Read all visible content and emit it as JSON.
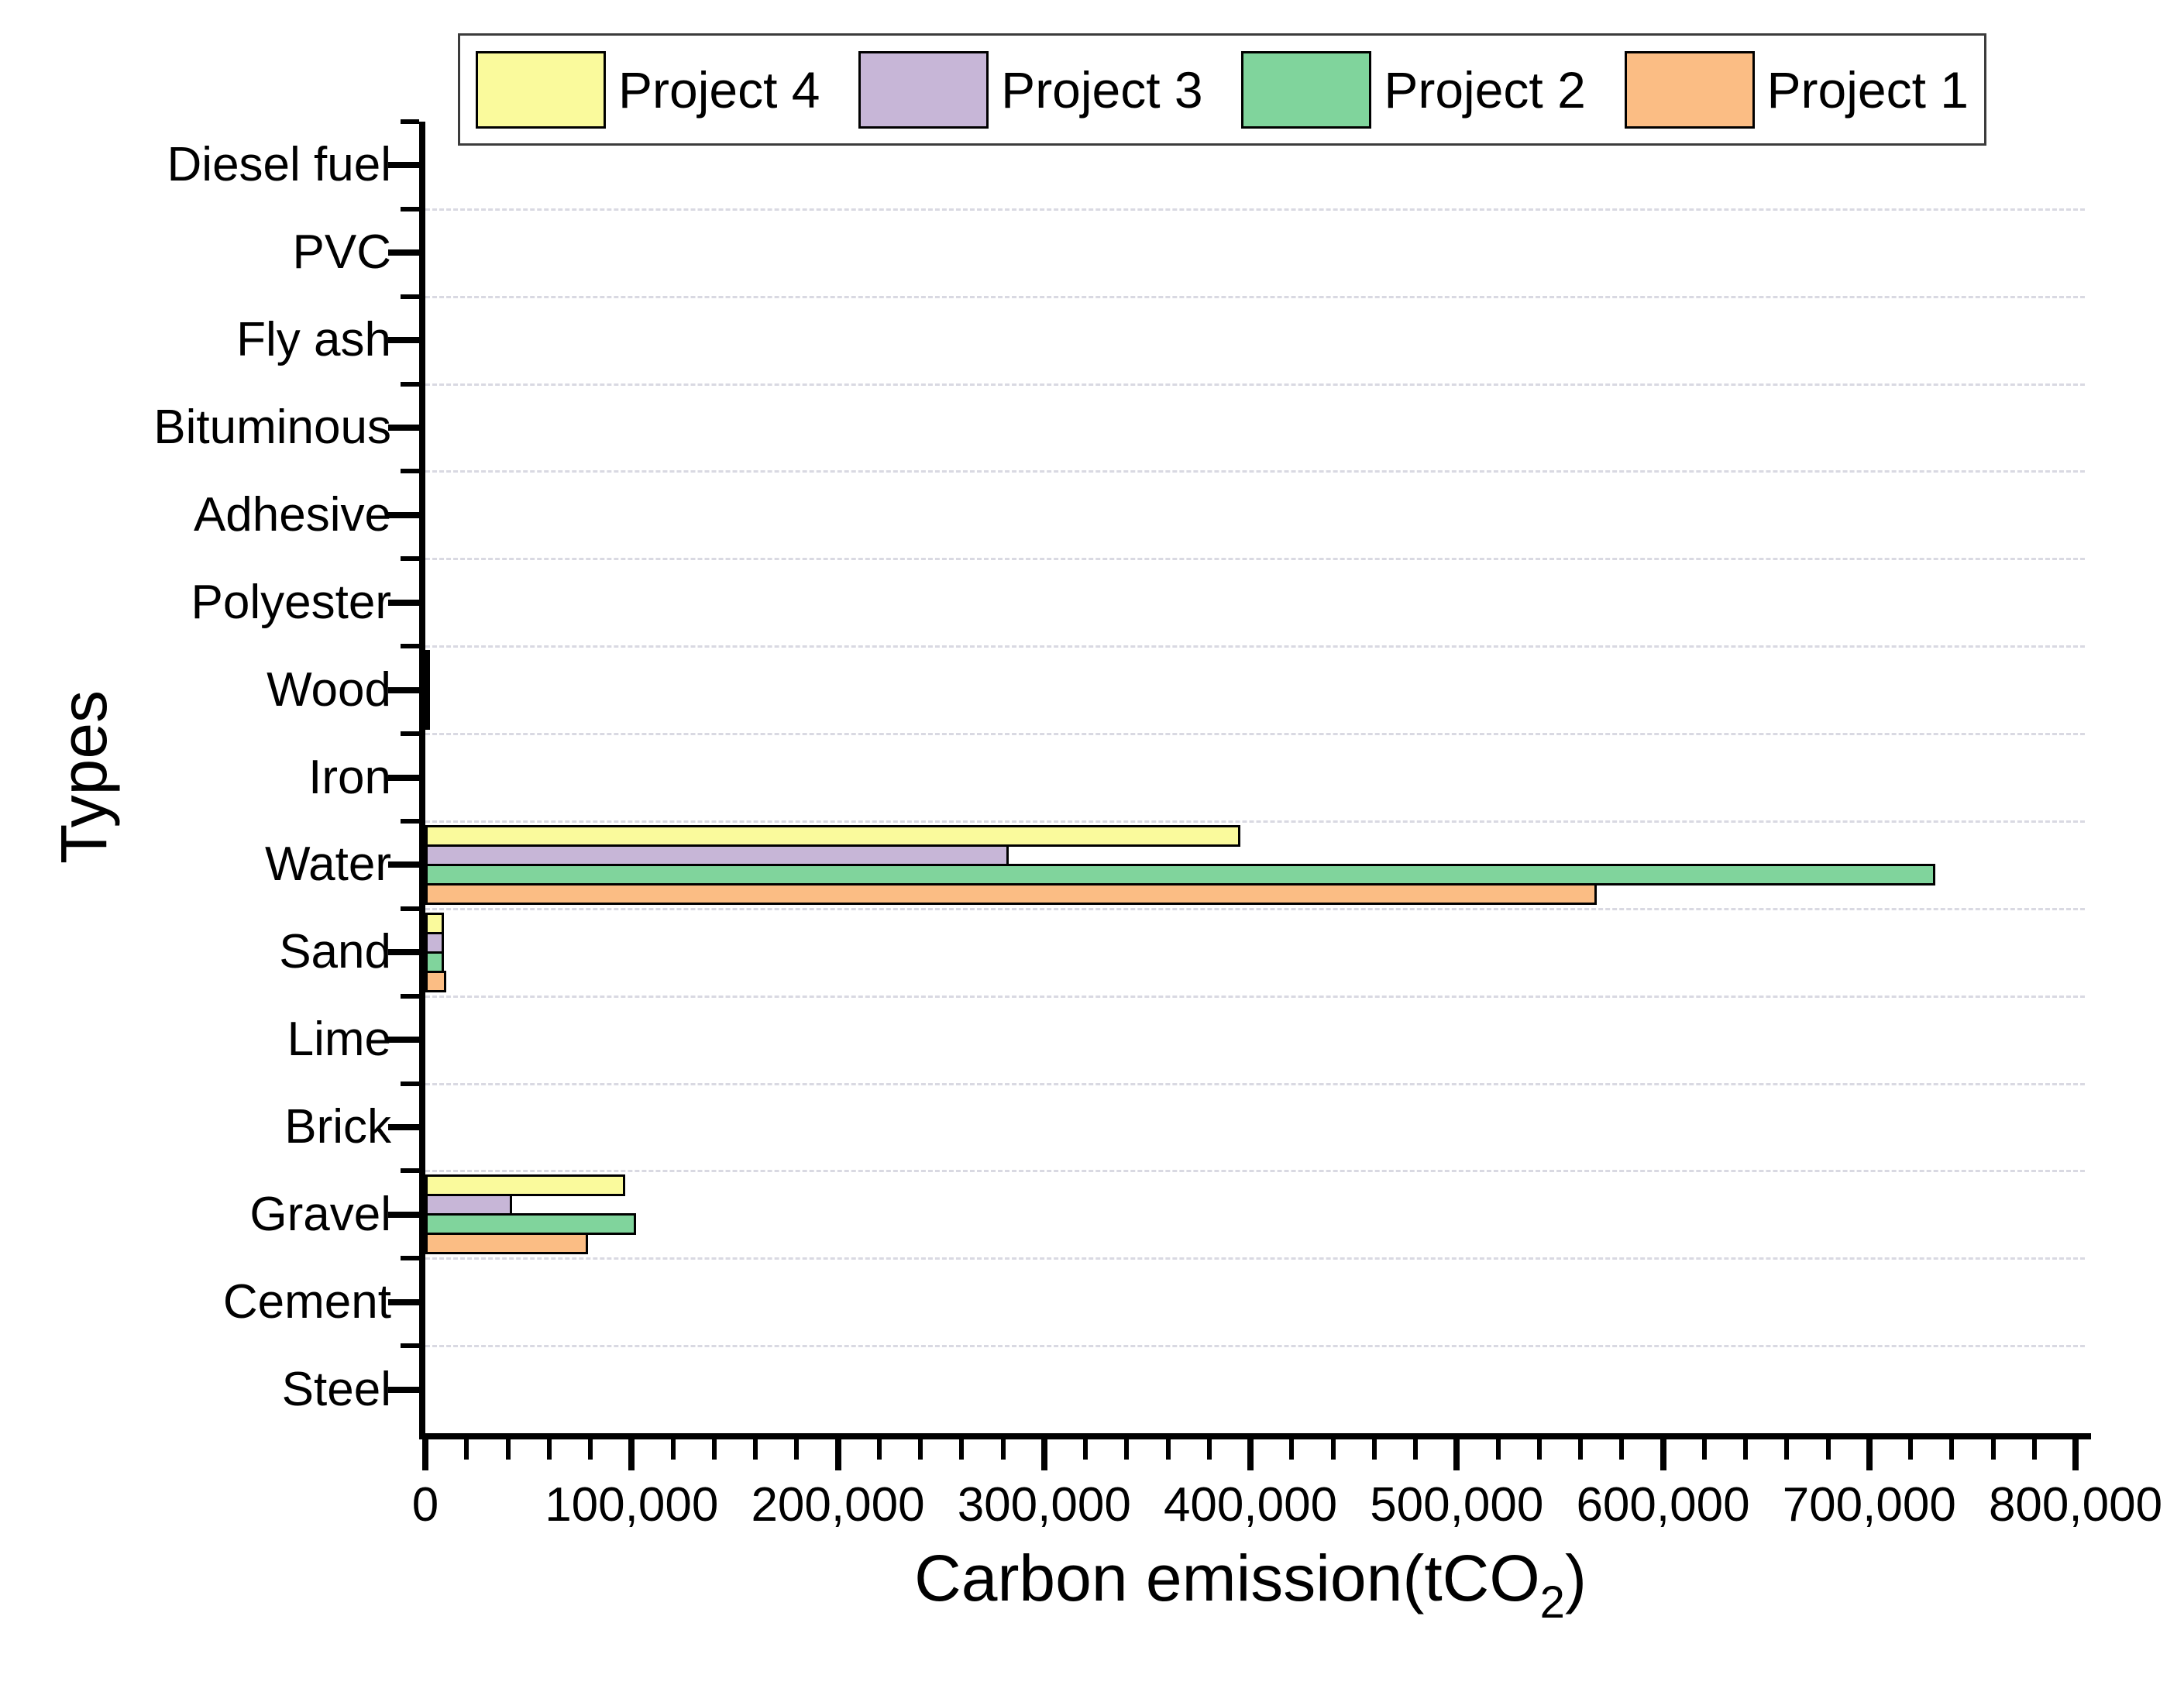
{
  "chart_data": {
    "type": "bar",
    "orientation": "horizontal",
    "ylabel": "Types",
    "xlabel": {
      "prefix": "Carbon emission(tCO",
      "sub": "2",
      "suffix": ")"
    },
    "categories": [
      "Diesel fuel",
      "PVC",
      "Fly ash",
      "Bituminous",
      "Adhesive",
      "Polyester",
      "Wood",
      "Iron",
      "Water",
      "Sand",
      "Lime",
      "Brick",
      "Gravel",
      "Cement",
      "Steel"
    ],
    "series": [
      {
        "name": "Project 4",
        "color": "#FAFA9C",
        "values": [
          0,
          0,
          0,
          0,
          0,
          0,
          2200,
          0,
          395000,
          9000,
          0,
          0,
          97000,
          0,
          0
        ]
      },
      {
        "name": "Project 3",
        "color": "#C7B6D7",
        "values": [
          0,
          0,
          0,
          0,
          0,
          0,
          2200,
          0,
          283000,
          9000,
          0,
          0,
          42000,
          0,
          0
        ]
      },
      {
        "name": "Project 2",
        "color": "#80D49C",
        "values": [
          0,
          0,
          0,
          0,
          0,
          0,
          2200,
          0,
          732000,
          9000,
          0,
          0,
          102000,
          0,
          0
        ]
      },
      {
        "name": "Project 1",
        "color": "#FBBD84",
        "values": [
          0,
          0,
          0,
          0,
          0,
          0,
          2200,
          0,
          568000,
          10000,
          0,
          0,
          79000,
          0,
          0
        ]
      }
    ],
    "xlim": [
      0,
      800000
    ],
    "xticks": [
      {
        "value": 0,
        "label": "0"
      },
      {
        "value": 100000,
        "label": "100,000"
      },
      {
        "value": 200000,
        "label": "200,000"
      },
      {
        "value": 300000,
        "label": "300,000"
      },
      {
        "value": 400000,
        "label": "400,000"
      },
      {
        "value": 500000,
        "label": "500,000"
      },
      {
        "value": 600000,
        "label": "600,000"
      },
      {
        "value": 700000,
        "label": "700,000"
      },
      {
        "value": 800000,
        "label": "800,000"
      }
    ],
    "x_minor_step": 20000,
    "grid": "horizontal-dashed",
    "legend_position": "top"
  }
}
